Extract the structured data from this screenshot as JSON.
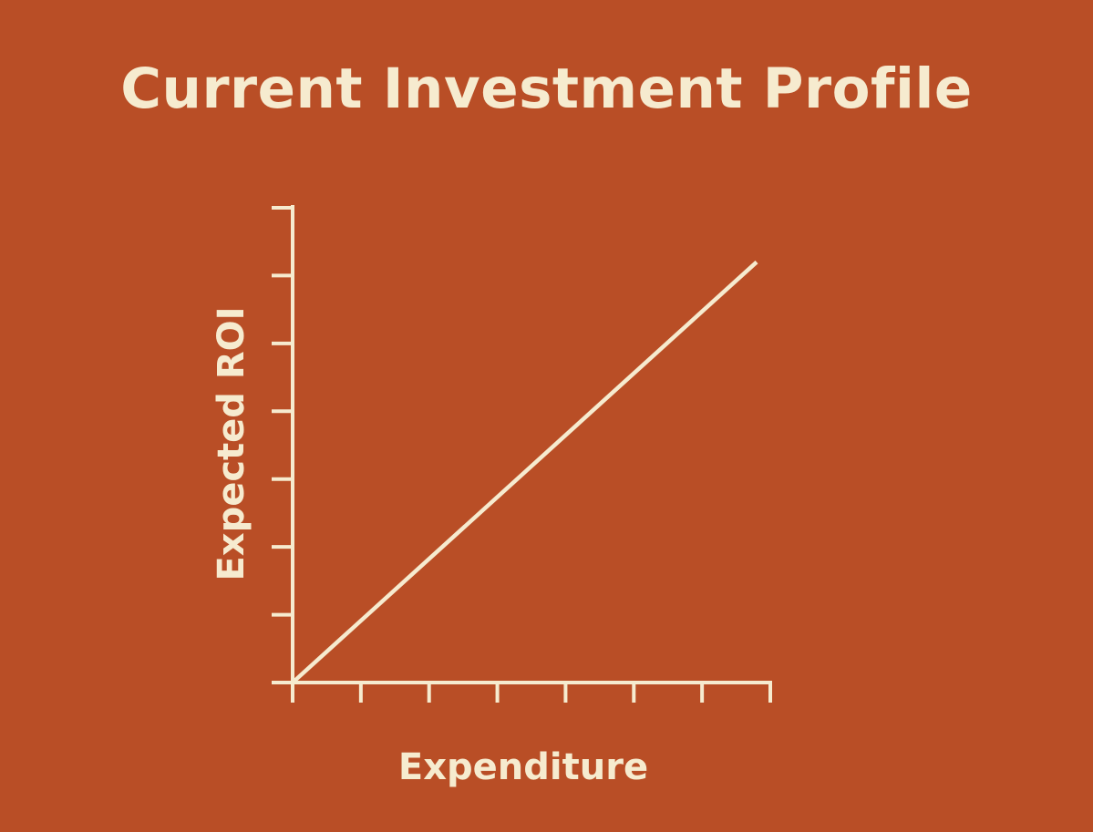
{
  "slide": {
    "title": "Current Investment Profile"
  },
  "colors": {
    "background": "#b94e26",
    "foreground": "#f6ebcf"
  },
  "chart_data": {
    "type": "line",
    "xlabel": "Expenditure",
    "ylabel": "Expected ROI",
    "xlim": [
      0,
      7
    ],
    "ylim": [
      0,
      7
    ],
    "x_ticks": 7,
    "y_ticks": 7,
    "tick_labels": "none",
    "grid": false,
    "legend": "none",
    "series": [
      {
        "x": [
          0,
          6.8
        ],
        "y": [
          0,
          6.2
        ]
      }
    ]
  }
}
